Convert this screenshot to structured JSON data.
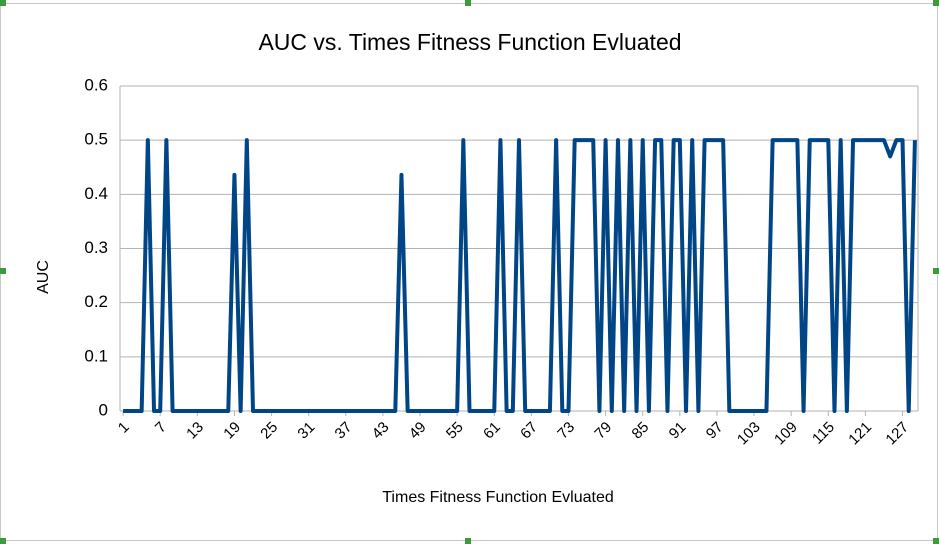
{
  "chart_data": {
    "type": "line",
    "title": "AUC vs. Times Fitness Function Evluated",
    "x_label": "Times Fitness Function Evluated",
    "y_label": "AUC",
    "categories": [
      "1",
      null,
      null,
      null,
      null,
      null,
      "7",
      null,
      null,
      null,
      null,
      null,
      "13",
      null,
      null,
      null,
      null,
      null,
      "19",
      null,
      null,
      null,
      null,
      null,
      "25",
      null,
      null,
      null,
      null,
      null,
      "31",
      null,
      null,
      null,
      null,
      null,
      "37",
      null,
      null,
      null,
      null,
      null,
      "43",
      null,
      null,
      null,
      null,
      null,
      "49",
      null,
      null,
      null,
      null,
      null,
      "55",
      null,
      null,
      null,
      null,
      null,
      "61",
      null,
      null,
      null,
      null,
      null,
      "67",
      null,
      null,
      null,
      null,
      null,
      "73",
      null,
      null,
      null,
      null,
      null,
      "79",
      null,
      null,
      null,
      null,
      null,
      "85",
      null,
      null,
      null,
      null,
      null,
      "91",
      null,
      null,
      null,
      null,
      null,
      "97",
      null,
      null,
      null,
      null,
      null,
      "103",
      null,
      null,
      null,
      null,
      null,
      "109",
      null,
      null,
      null,
      null,
      null,
      "115",
      null,
      null,
      null,
      null,
      null,
      "121",
      null,
      null,
      null,
      null,
      null,
      "127",
      null,
      null
    ],
    "values": [
      0,
      0,
      0,
      0,
      0.5,
      0,
      0,
      0.5,
      0,
      0,
      0,
      0,
      0,
      0,
      0,
      0,
      0,
      0,
      0.436,
      0,
      0.5,
      0,
      0,
      0,
      0,
      0,
      0,
      0,
      0,
      0,
      0,
      0,
      0,
      0,
      0,
      0,
      0,
      0,
      0,
      0,
      0,
      0,
      0,
      0,
      0,
      0.436,
      0,
      0,
      0,
      0,
      0,
      0,
      0,
      0,
      0,
      0.5,
      0,
      0,
      0,
      0,
      0,
      0.5,
      0,
      0,
      0.5,
      0,
      0,
      0,
      0,
      0,
      0.5,
      0,
      0,
      0.5,
      0.5,
      0.5,
      0.5,
      0,
      0.5,
      0,
      0.5,
      0,
      0.5,
      0,
      0.5,
      0,
      0.5,
      0.5,
      0,
      0.5,
      0.5,
      0,
      0.5,
      0,
      0.5,
      0.5,
      0.5,
      0.5,
      0,
      0,
      0,
      0,
      0,
      0,
      0,
      0.5,
      0.5,
      0.5,
      0.5,
      0.5,
      0,
      0.5,
      0.5,
      0.5,
      0.5,
      0,
      0.5,
      0,
      0.5,
      0.5,
      0.5,
      0.5,
      0.5,
      0.5,
      0.47,
      0.5,
      0.5,
      0,
      0.5
    ],
    "color": "#004586",
    "ylim": [
      0,
      0.6
    ],
    "yticks": [
      0,
      0.1,
      0.2,
      0.3,
      0.4,
      0.5,
      0.6
    ],
    "grid": true
  }
}
